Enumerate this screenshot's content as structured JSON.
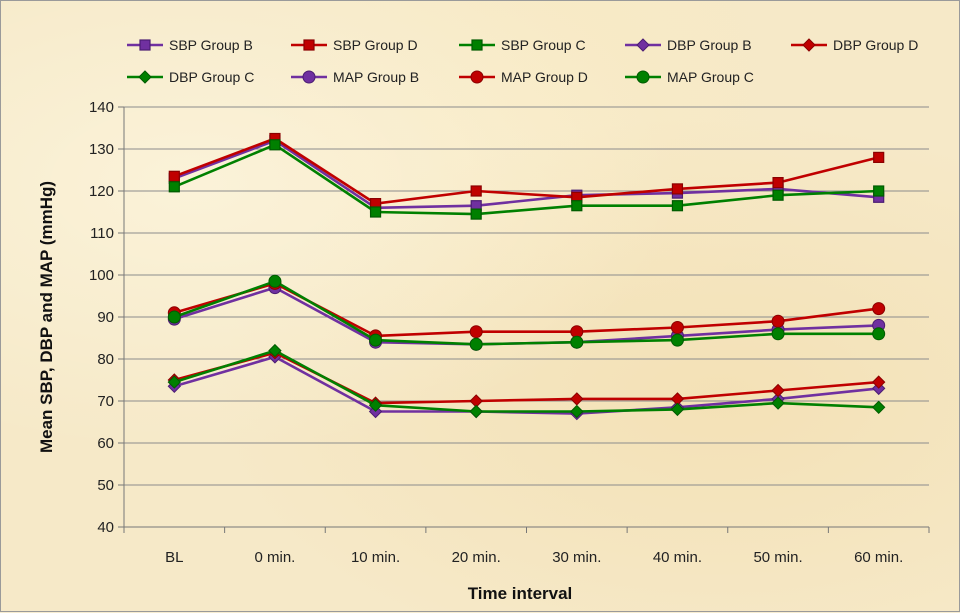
{
  "chart_data": {
    "type": "line",
    "xlabel": "Time interval",
    "ylabel": "Mean SBP, DBP and MAP (mmHg)",
    "categories": [
      "BL",
      "0 min.",
      "10 min.",
      "20 min.",
      "30 min.",
      "40 min.",
      "50 min.",
      "60 min."
    ],
    "ylim": [
      40,
      140
    ],
    "yticks": [
      40,
      50,
      60,
      70,
      80,
      90,
      100,
      110,
      120,
      130,
      140
    ],
    "grid": true,
    "legend_position": "top",
    "series": [
      {
        "name": "SBP Group B",
        "color": "#7030a0",
        "marker": "square",
        "values": [
          123,
          132,
          116,
          116.5,
          119,
          119.5,
          120.5,
          118.5
        ]
      },
      {
        "name": "SBP Group D",
        "color": "#c00000",
        "marker": "square",
        "values": [
          123.5,
          132.5,
          117,
          120,
          118.5,
          120.5,
          122,
          128
        ]
      },
      {
        "name": "SBP Group C",
        "color": "#008000",
        "marker": "square",
        "values": [
          121,
          131,
          115,
          114.5,
          116.5,
          116.5,
          119,
          120
        ]
      },
      {
        "name": "DBP Group B",
        "color": "#7030a0",
        "marker": "diamond",
        "values": [
          73.5,
          80.5,
          67.5,
          67.5,
          67,
          68.5,
          70.5,
          73
        ]
      },
      {
        "name": "DBP Group D",
        "color": "#c00000",
        "marker": "diamond",
        "values": [
          75,
          81.5,
          69.5,
          70,
          70.5,
          70.5,
          72.5,
          74.5
        ]
      },
      {
        "name": "DBP Group C",
        "color": "#008000",
        "marker": "diamond",
        "values": [
          74.5,
          82,
          69,
          67.5,
          67.5,
          68,
          69.5,
          68.5
        ]
      },
      {
        "name": "MAP Group B",
        "color": "#7030a0",
        "marker": "circle",
        "values": [
          89.5,
          97,
          84,
          83.5,
          84,
          85.5,
          87,
          88
        ]
      },
      {
        "name": "MAP Group D",
        "color": "#c00000",
        "marker": "circle",
        "values": [
          91,
          98,
          85.5,
          86.5,
          86.5,
          87.5,
          89,
          92
        ]
      },
      {
        "name": "MAP Group C",
        "color": "#008000",
        "marker": "circle",
        "values": [
          90,
          98.5,
          84.5,
          83.5,
          84,
          84.5,
          86,
          86
        ]
      }
    ]
  }
}
